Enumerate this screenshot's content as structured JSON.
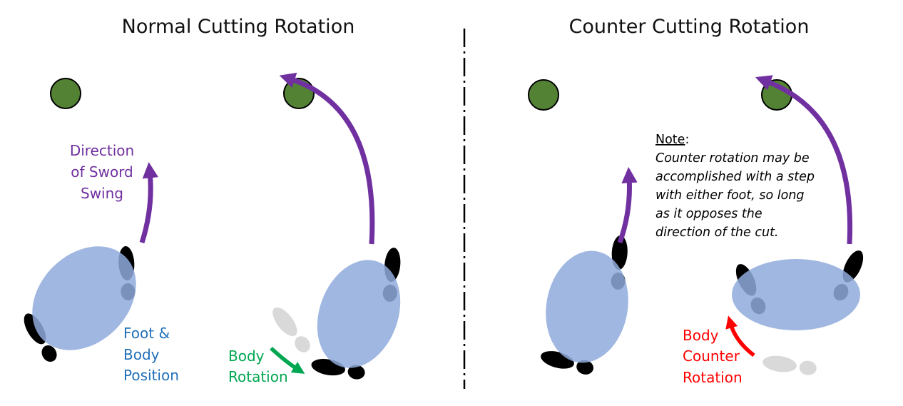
{
  "colors": {
    "purple": "#7030A0",
    "blue_label": "#1F6FB8",
    "green": "#00A650",
    "red": "#FF0000",
    "body_fill": "#8FAADC",
    "target": "#548235",
    "ghost_foot": "#D9D9D9",
    "foot": "#000000"
  },
  "left_panel": {
    "title": "Normal Cutting Rotation",
    "sword_label": [
      "Direction",
      "of Sword",
      "Swing"
    ],
    "position_label": [
      "Foot &",
      "Body",
      "Position"
    ],
    "rotation_label": [
      "Body",
      "Rotation"
    ]
  },
  "right_panel": {
    "title": "Counter Cutting Rotation",
    "note_heading": "Note",
    "note_colon": ":",
    "note_lines": [
      "Counter rotation may be",
      "accomplished with a step",
      "with either foot, so long",
      "as it opposes the",
      "direction of the cut."
    ],
    "counter_label": [
      "Body",
      "Counter",
      "Rotation"
    ]
  },
  "icons": [
    "target-circle-icon",
    "footprint-icon",
    "ghost-footprint-icon",
    "swing-arrow-icon",
    "rotation-arrow-icon"
  ]
}
